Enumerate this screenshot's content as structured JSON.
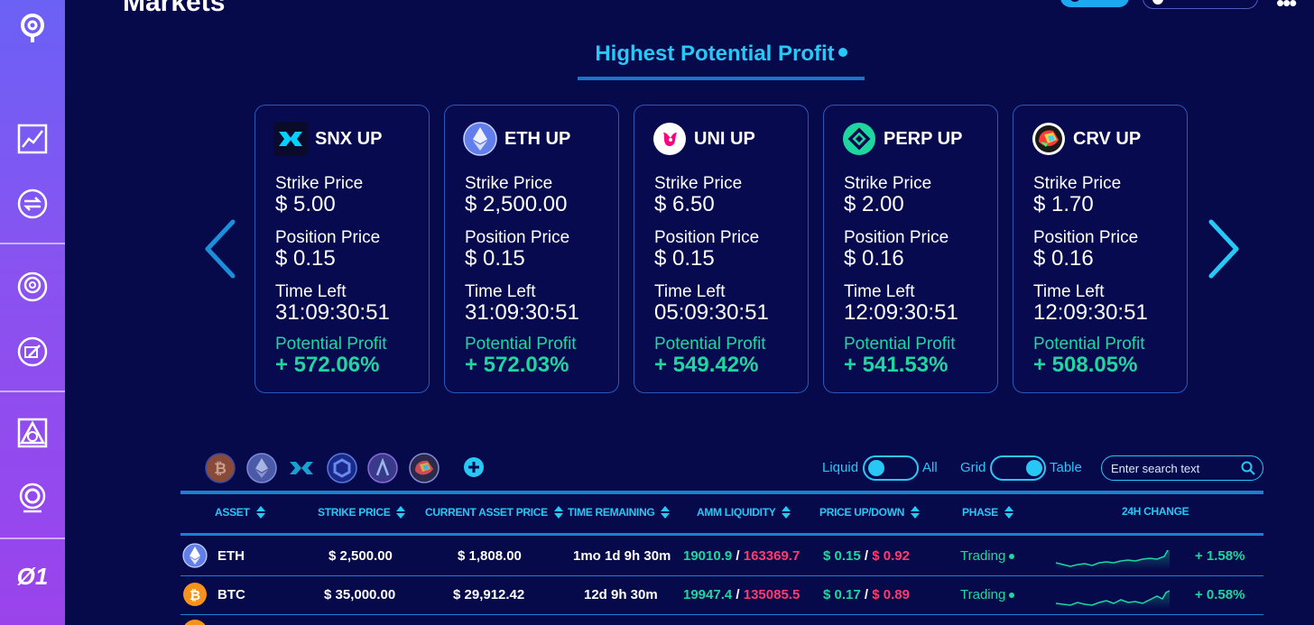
{
  "header": {
    "page_title": "Markets"
  },
  "section": {
    "title": "Highest Potential Profit"
  },
  "cards": [
    {
      "name": "SNX UP",
      "icon": "snx-icon",
      "strike_label": "Strike Price",
      "strike": "$ 5.00",
      "position_label": "Position Price",
      "position": "$ 0.15",
      "time_label": "Time Left",
      "time": "31:09:30:51",
      "profit_label": "Potential Profit",
      "profit": "+ 572.06%"
    },
    {
      "name": "ETH UP",
      "icon": "eth-icon",
      "strike_label": "Strike Price",
      "strike": "$ 2,500.00",
      "position_label": "Position Price",
      "position": "$ 0.15",
      "time_label": "Time Left",
      "time": "31:09:30:51",
      "profit_label": "Potential Profit",
      "profit": "+ 572.03%"
    },
    {
      "name": "UNI UP",
      "icon": "uni-icon",
      "strike_label": "Strike Price",
      "strike": "$ 6.50",
      "position_label": "Position Price",
      "position": "$ 0.15",
      "time_label": "Time Left",
      "time": "05:09:30:51",
      "profit_label": "Potential Profit",
      "profit": "+ 549.42%"
    },
    {
      "name": "PERP UP",
      "icon": "perp-icon",
      "strike_label": "Strike Price",
      "strike": "$ 2.00",
      "position_label": "Position Price",
      "position": "$ 0.16",
      "time_label": "Time Left",
      "time": "12:09:30:51",
      "profit_label": "Potential Profit",
      "profit": "+ 541.53%"
    },
    {
      "name": "CRV UP",
      "icon": "crv-icon",
      "strike_label": "Strike Price",
      "strike": "$ 1.70",
      "position_label": "Position Price",
      "position": "$ 0.16",
      "time_label": "Time Left",
      "time": "12:09:30:51",
      "profit_label": "Potential Profit",
      "profit": "+ 508.05%"
    }
  ],
  "filters": {
    "coins": [
      "btc-icon",
      "eth-icon",
      "snx-icon",
      "link-icon",
      "aave-icon",
      "crv-icon"
    ],
    "toggle1_left": "Liquid",
    "toggle1_right": "All",
    "toggle2_left": "Grid",
    "toggle2_right": "Table",
    "search_placeholder": "Enter search text"
  },
  "table": {
    "headers": [
      "ASSET",
      "STRIKE PRICE",
      "CURRENT ASSET PRICE",
      "TIME REMAINING",
      "AMM LIQUIDITY",
      "PRICE UP/DOWN",
      "PHASE",
      "24H CHANGE"
    ],
    "rows": [
      {
        "asset": "ETH",
        "icon": "eth-icon",
        "strike": "$ 2,500.00",
        "current": "$ 1,808.00",
        "time": "1mo 1d 9h 30m",
        "liq_up": "19010.9",
        "liq_sep": " / ",
        "liq_down": "163369.7",
        "price_up": "$ 0.15",
        "price_sep": " / ",
        "price_down": "$ 0.92",
        "phase": "Trading",
        "change": "+ 1.58%"
      },
      {
        "asset": "BTC",
        "icon": "btc-icon",
        "strike": "$ 35,000.00",
        "current": "$ 29,912.42",
        "time": "12d 9h 30m",
        "liq_up": "19947.4",
        "liq_sep": " / ",
        "liq_down": "135085.5",
        "price_up": "$ 0.17",
        "price_sep": " / ",
        "price_down": "$ 0.89",
        "phase": "Trading",
        "change": "+ 0.58%"
      }
    ]
  },
  "sidebar": {
    "logo_text": "Ø1",
    "icons": [
      "thales-logo-icon",
      "chart-icon",
      "swap-icon",
      "target-icon",
      "edit-icon",
      "triangle-icon",
      "token-icon"
    ]
  },
  "colors": {
    "background": "#06094a",
    "accent": "#27c8f5",
    "profit": "#1ed6a0",
    "loss": "#ff3a6e"
  }
}
